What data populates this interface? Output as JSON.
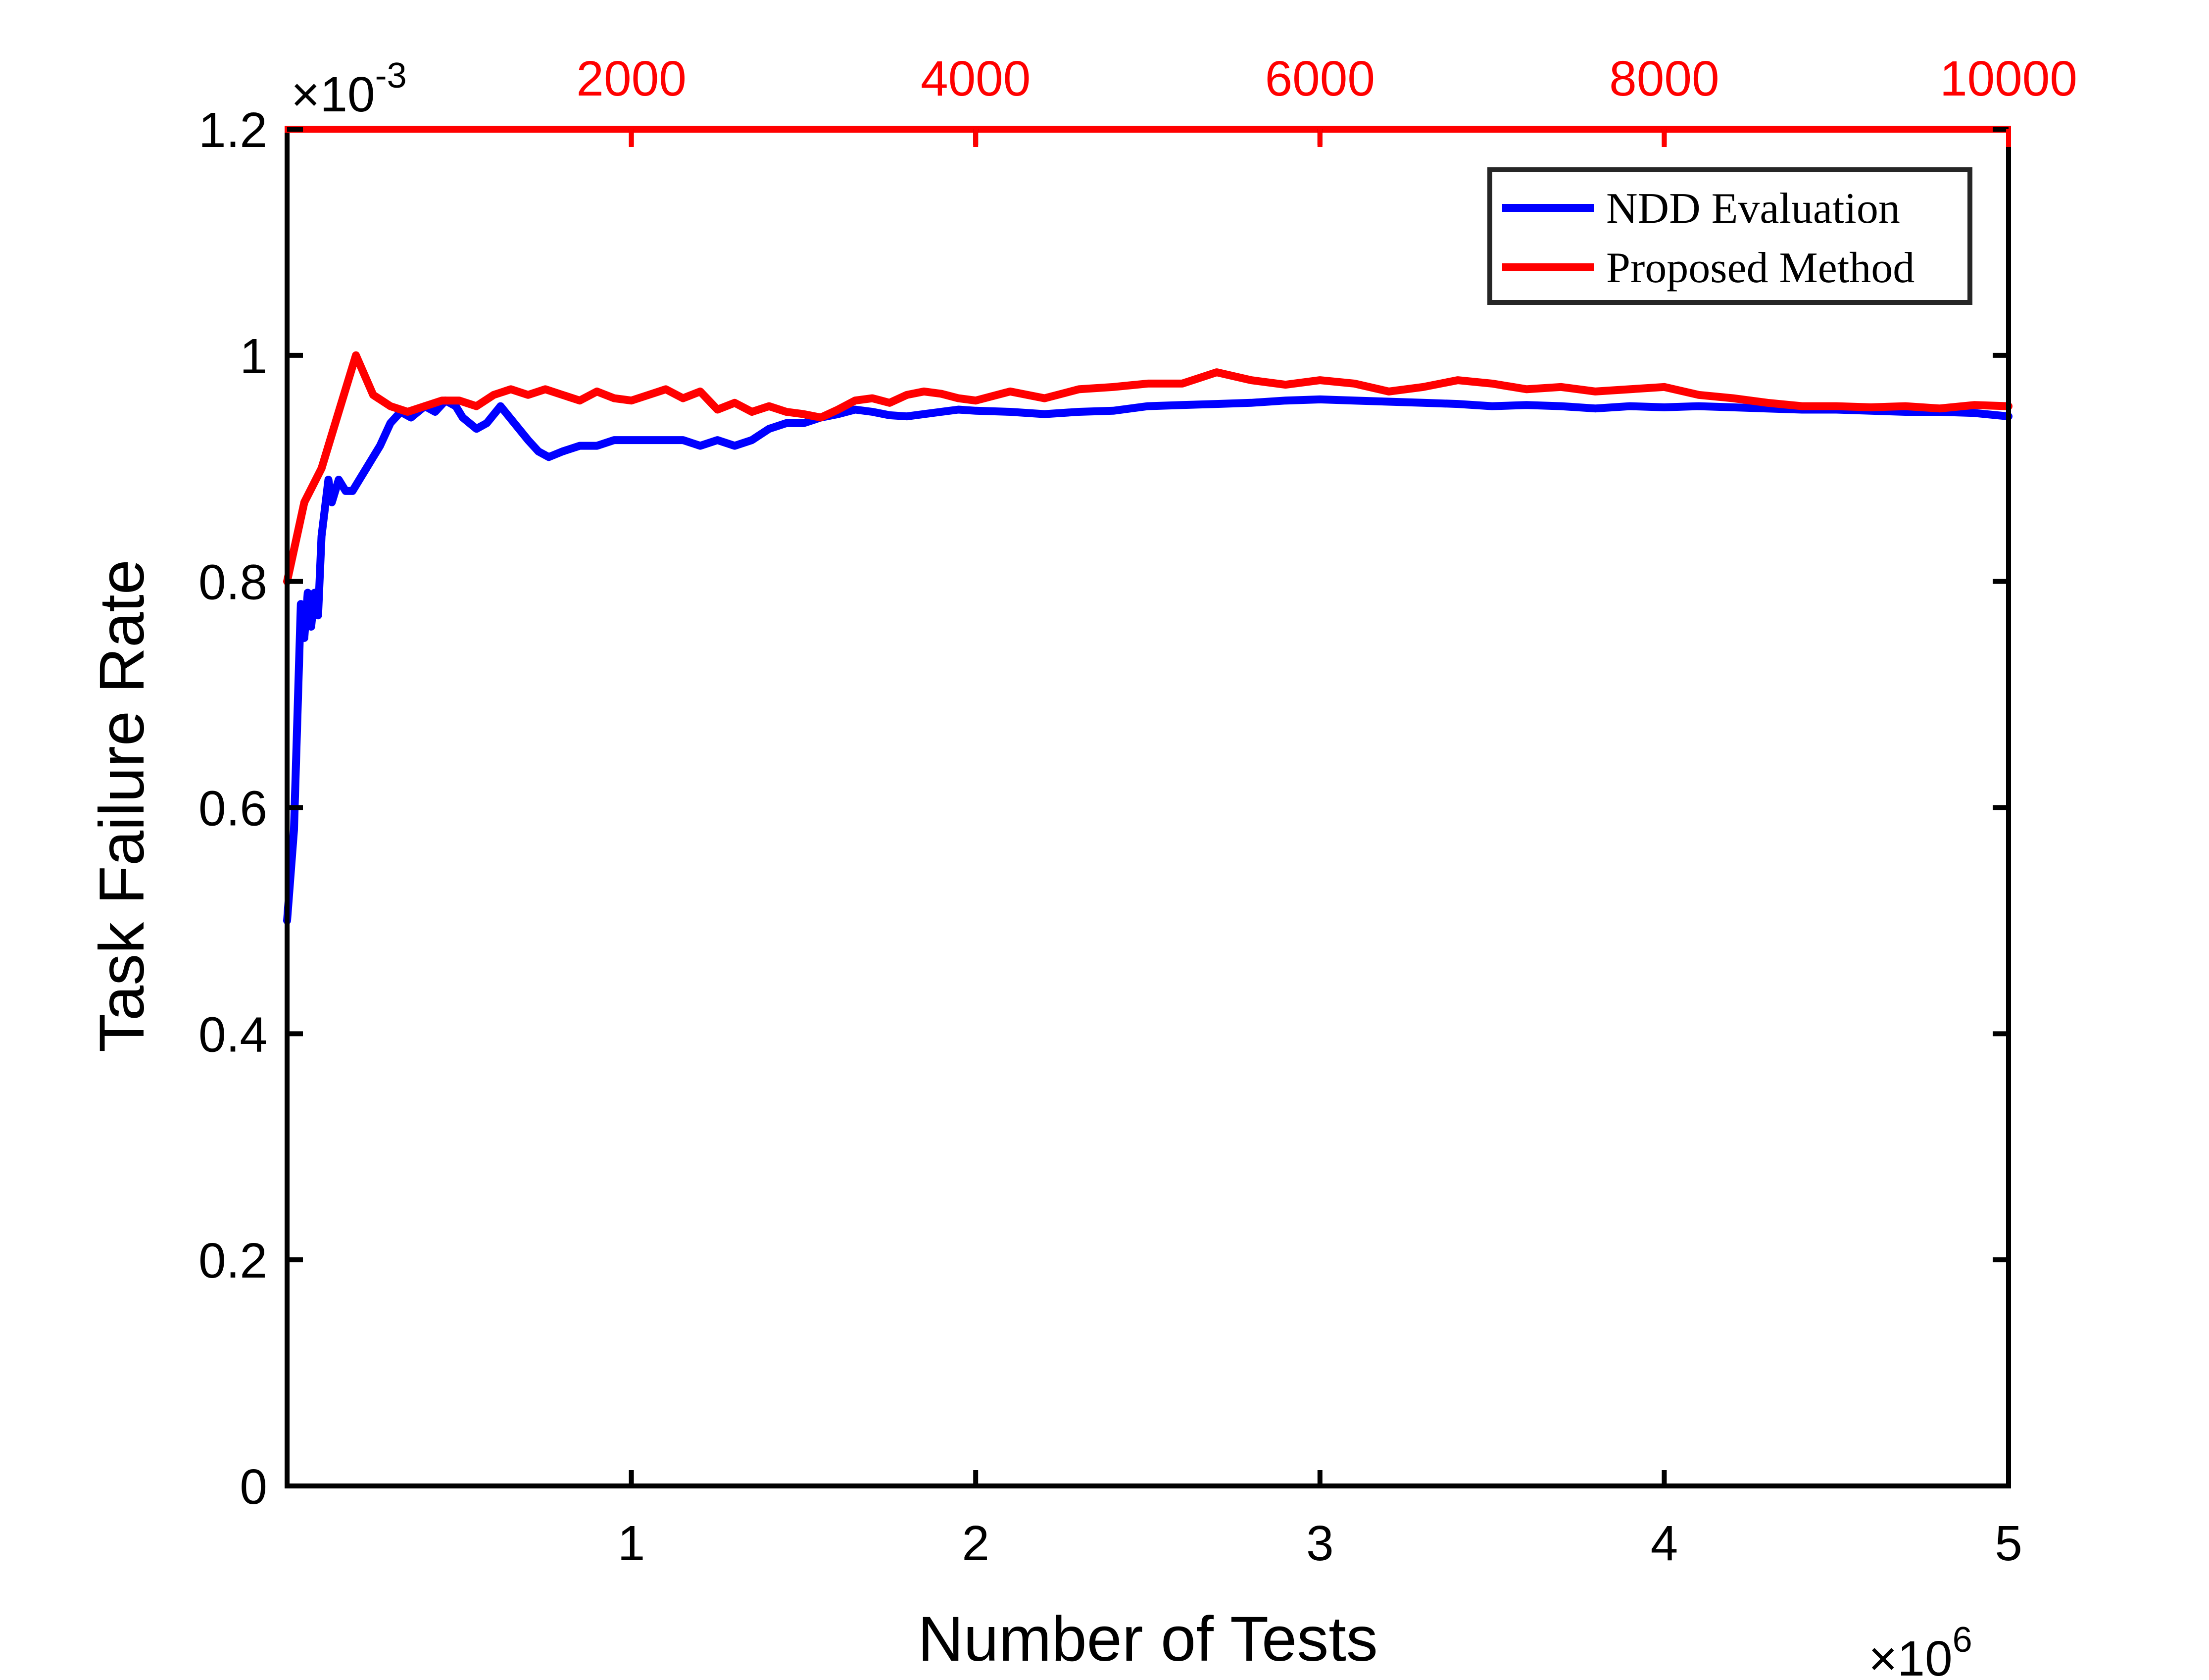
{
  "chart_data": {
    "type": "line",
    "xlabel": "Number of Tests",
    "ylabel": "Task Failure Rate",
    "x_multiplier": {
      "base": "×10",
      "exponent": "6"
    },
    "y_multiplier": {
      "base": "×10",
      "exponent": "-3"
    },
    "xlim": [
      0,
      5
    ],
    "ylim": [
      0,
      1.2
    ],
    "x_ticks": [
      "1",
      "2",
      "3",
      "4",
      "5"
    ],
    "y_ticks": [
      "0",
      "0.2",
      "0.4",
      "0.6",
      "0.8",
      "1",
      "1.2"
    ],
    "x2lim": [
      0,
      10000
    ],
    "x2_ticks": [
      "2000",
      "4000",
      "6000",
      "8000",
      "10000"
    ],
    "x2_color": "#ff0000",
    "grid": false,
    "legend_position": "top-right",
    "series": [
      {
        "name": "NDD Evaluation",
        "color": "#0000ff",
        "axis": "bottom",
        "x": [
          0.0,
          0.02,
          0.04,
          0.05,
          0.06,
          0.07,
          0.08,
          0.09,
          0.1,
          0.12,
          0.13,
          0.15,
          0.17,
          0.19,
          0.21,
          0.23,
          0.25,
          0.27,
          0.3,
          0.33,
          0.36,
          0.4,
          0.43,
          0.46,
          0.49,
          0.51,
          0.55,
          0.58,
          0.62,
          0.66,
          0.7,
          0.73,
          0.76,
          0.8,
          0.85,
          0.9,
          0.95,
          1.0,
          1.05,
          1.1,
          1.15,
          1.2,
          1.25,
          1.3,
          1.35,
          1.4,
          1.45,
          1.5,
          1.55,
          1.6,
          1.65,
          1.7,
          1.75,
          1.8,
          1.85,
          1.9,
          1.95,
          2.0,
          2.1,
          2.2,
          2.3,
          2.4,
          2.5,
          2.6,
          2.7,
          2.8,
          2.9,
          3.0,
          3.1,
          3.2,
          3.3,
          3.4,
          3.5,
          3.6,
          3.7,
          3.8,
          3.9,
          4.0,
          4.1,
          4.2,
          4.3,
          4.4,
          4.5,
          4.6,
          4.7,
          4.8,
          4.9,
          5.0
        ],
        "y": [
          0.5,
          0.58,
          0.78,
          0.75,
          0.79,
          0.76,
          0.79,
          0.77,
          0.84,
          0.89,
          0.87,
          0.89,
          0.88,
          0.88,
          0.89,
          0.9,
          0.91,
          0.92,
          0.94,
          0.95,
          0.945,
          0.955,
          0.95,
          0.96,
          0.955,
          0.945,
          0.935,
          0.94,
          0.955,
          0.94,
          0.925,
          0.915,
          0.91,
          0.915,
          0.92,
          0.92,
          0.925,
          0.925,
          0.925,
          0.925,
          0.925,
          0.92,
          0.925,
          0.92,
          0.925,
          0.935,
          0.94,
          0.94,
          0.945,
          0.948,
          0.952,
          0.95,
          0.947,
          0.946,
          0.948,
          0.95,
          0.952,
          0.951,
          0.95,
          0.948,
          0.95,
          0.951,
          0.955,
          0.956,
          0.957,
          0.958,
          0.96,
          0.961,
          0.96,
          0.959,
          0.958,
          0.957,
          0.955,
          0.956,
          0.955,
          0.953,
          0.955,
          0.954,
          0.955,
          0.954,
          0.953,
          0.952,
          0.952,
          0.951,
          0.95,
          0.95,
          0.949,
          0.946
        ]
      },
      {
        "name": "Proposed Method",
        "color": "#ff0000",
        "axis": "top",
        "x": [
          0,
          100,
          200,
          300,
          400,
          500,
          600,
          700,
          800,
          900,
          1000,
          1100,
          1200,
          1300,
          1400,
          1500,
          1600,
          1700,
          1800,
          1900,
          2000,
          2100,
          2200,
          2300,
          2400,
          2500,
          2600,
          2700,
          2800,
          2900,
          3000,
          3100,
          3200,
          3300,
          3400,
          3500,
          3600,
          3700,
          3800,
          3900,
          4000,
          4200,
          4400,
          4600,
          4800,
          5000,
          5200,
          5400,
          5600,
          5800,
          6000,
          6200,
          6400,
          6600,
          6800,
          7000,
          7200,
          7400,
          7600,
          7800,
          8000,
          8200,
          8400,
          8600,
          8800,
          9000,
          9200,
          9400,
          9600,
          9800,
          10000
        ],
        "y": [
          0.8,
          0.87,
          0.9,
          0.95,
          1.0,
          0.965,
          0.955,
          0.95,
          0.955,
          0.96,
          0.96,
          0.955,
          0.965,
          0.97,
          0.965,
          0.97,
          0.965,
          0.96,
          0.968,
          0.962,
          0.96,
          0.965,
          0.97,
          0.962,
          0.968,
          0.952,
          0.958,
          0.95,
          0.955,
          0.95,
          0.948,
          0.945,
          0.952,
          0.96,
          0.962,
          0.958,
          0.965,
          0.968,
          0.966,
          0.962,
          0.96,
          0.968,
          0.962,
          0.97,
          0.972,
          0.975,
          0.975,
          0.985,
          0.978,
          0.974,
          0.978,
          0.975,
          0.968,
          0.972,
          0.978,
          0.975,
          0.97,
          0.972,
          0.968,
          0.97,
          0.972,
          0.965,
          0.962,
          0.958,
          0.955,
          0.955,
          0.954,
          0.955,
          0.953,
          0.956,
          0.955
        ]
      }
    ]
  }
}
